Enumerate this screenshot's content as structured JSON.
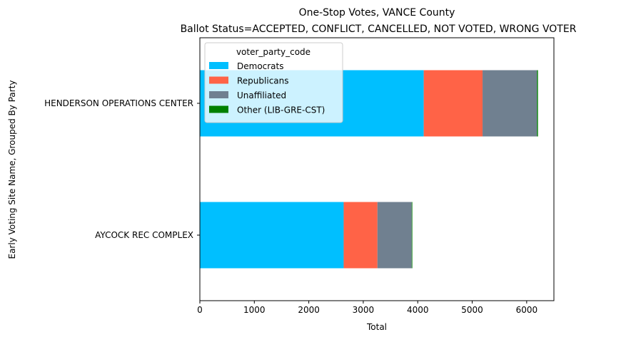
{
  "chart_data": {
    "type": "bar",
    "orientation": "horizontal",
    "stacked": true,
    "title": "One-Stop Votes, VANCE County",
    "subtitle": "Ballot Status=ACCEPTED, CONFLICT, CANCELLED, NOT VOTED, WRONG VOTER",
    "xlabel": "Total",
    "ylabel": "Early Voting Site Name, Grouped By Party",
    "xlim": [
      0,
      6500
    ],
    "xticks": [
      0,
      1000,
      2000,
      3000,
      4000,
      5000,
      6000
    ],
    "categories": [
      "AYCOCK REC COMPLEX",
      "HENDERSON OPERATIONS CENTER"
    ],
    "legend_title": "voter_party_code",
    "legend_position": "top-left",
    "grid": false,
    "series": [
      {
        "name": "Democrats",
        "color": "#00bfff",
        "values": [
          2640,
          4110
        ]
      },
      {
        "name": "Republicans",
        "color": "#ff6347",
        "values": [
          620,
          1080
        ]
      },
      {
        "name": "Unaffiliated",
        "color": "#708090",
        "values": [
          630,
          1000
        ]
      },
      {
        "name": "Other (LIB-GRE-CST)",
        "color": "#008000",
        "values": [
          5,
          18
        ]
      }
    ]
  }
}
